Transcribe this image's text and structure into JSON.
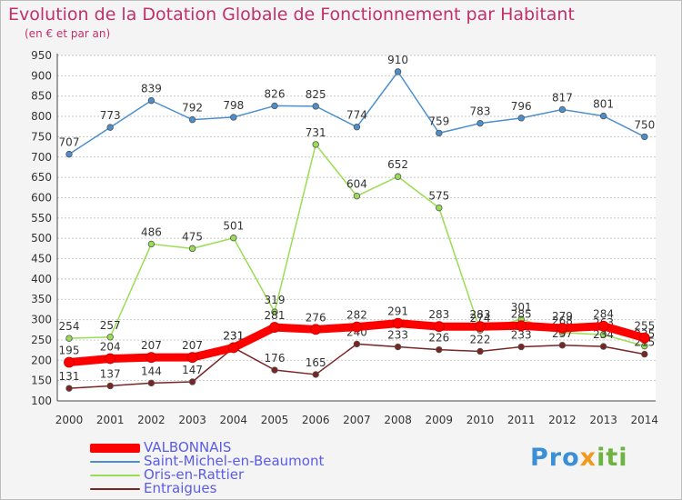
{
  "header": {
    "title": "Evolution de la Dotation Globale de Fonctionnement par Habitant",
    "subtitle": "(en € et par an)"
  },
  "brand": {
    "logo_text": "Proxiti"
  },
  "colors": {
    "VALBONNAIS": "#ff0000",
    "Saint-Michel-en-Beaumont": "#4d8fcc",
    "Oris-en-Rattier": "#99dd55",
    "Entraigues": "#7a2424"
  },
  "chart_data": {
    "type": "line",
    "title": "Evolution de la Dotation Globale de Fonctionnement par Habitant",
    "subtitle": "(en € et par an)",
    "xlabel": "",
    "ylabel": "",
    "x": [
      "2000",
      "2001",
      "2002",
      "2003",
      "2004",
      "2005",
      "2006",
      "2007",
      "2008",
      "2009",
      "2010",
      "2011",
      "2012",
      "2013",
      "2014"
    ],
    "ylim": [
      100,
      950
    ],
    "y_ticks": [
      100,
      150,
      200,
      250,
      300,
      350,
      400,
      450,
      500,
      550,
      600,
      650,
      700,
      750,
      800,
      850,
      900,
      950
    ],
    "grid": "horizontal dashed",
    "legend_position": "bottom-left",
    "series": [
      {
        "name": "VALBONNAIS",
        "values": [
          195,
          204,
          207,
          207,
          231,
          281,
          276,
          282,
          291,
          283,
          283,
          285,
          279,
          284,
          255
        ]
      },
      {
        "name": "Saint-Michel-en-Beaumont",
        "values": [
          707,
          773,
          839,
          792,
          798,
          826,
          825,
          774,
          910,
          759,
          783,
          796,
          817,
          801,
          750
        ]
      },
      {
        "name": "Oris-en-Rattier",
        "values": [
          254,
          257,
          486,
          475,
          501,
          319,
          731,
          604,
          652,
          575,
          274,
          301,
          268,
          263,
          235
        ]
      },
      {
        "name": "Entraigues",
        "values": [
          131,
          137,
          144,
          147,
          231,
          176,
          165,
          240,
          233,
          226,
          222,
          233,
          237,
          234,
          215
        ]
      }
    ]
  }
}
